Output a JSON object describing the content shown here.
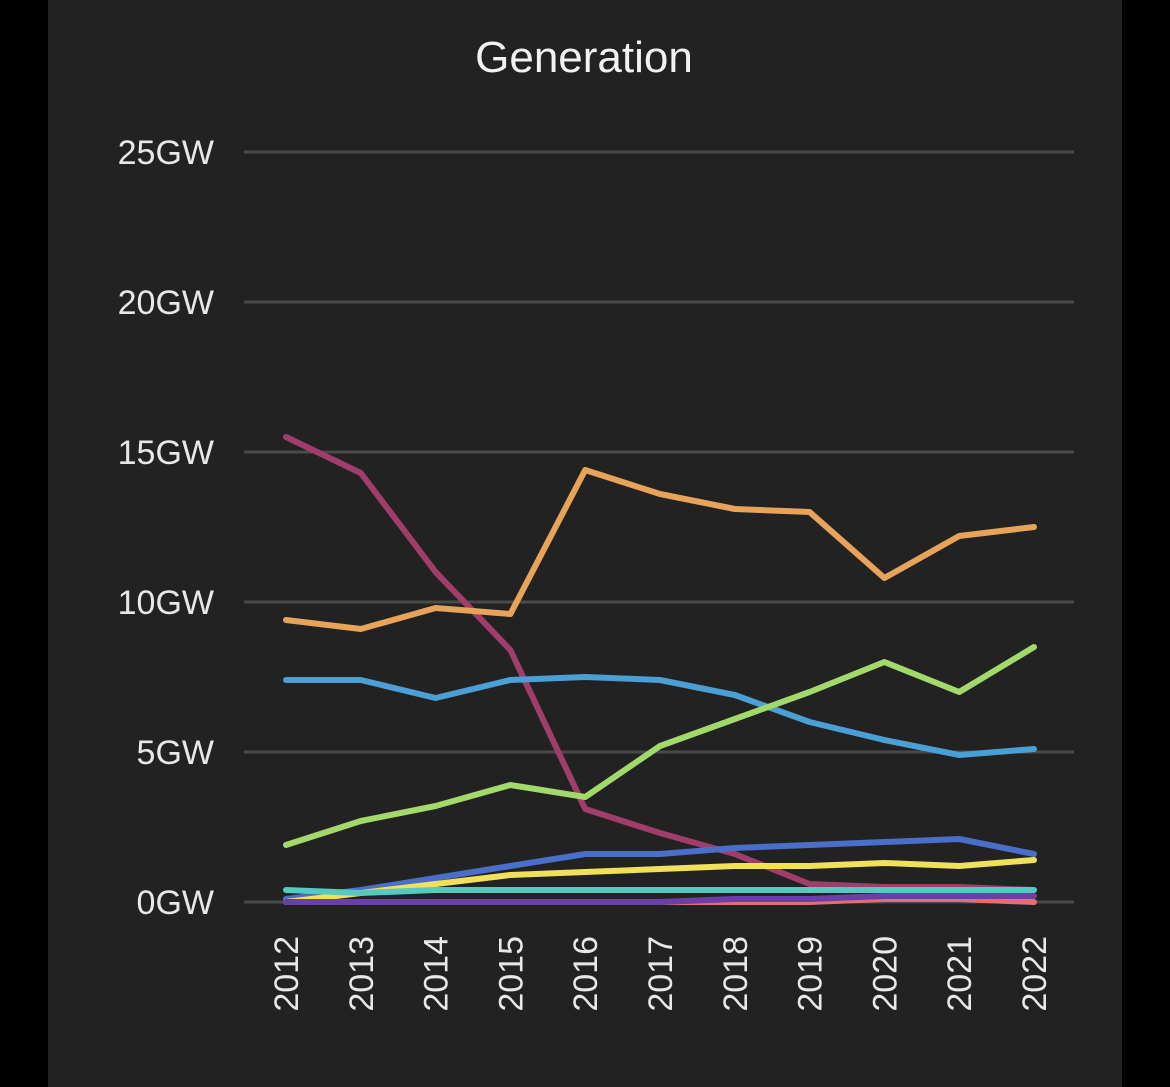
{
  "chart_data": {
    "type": "line",
    "title": "Generation",
    "xlabel": "",
    "ylabel": "",
    "x": [
      "2012",
      "2013",
      "2014",
      "2015",
      "2016",
      "2017",
      "2018",
      "2019",
      "2020",
      "2021",
      "2022"
    ],
    "y_ticks": [
      "0GW",
      "5GW",
      "10GW",
      "15GW",
      "20GW",
      "25GW"
    ],
    "ylim": [
      0,
      25
    ],
    "grid": true,
    "legend": "none",
    "series": [
      {
        "color": "#a13d6b",
        "values": [
          15.5,
          14.3,
          11.0,
          8.4,
          3.1,
          2.3,
          1.6,
          0.6,
          0.5,
          0.5,
          0.4
        ]
      },
      {
        "color": "#e8a35a",
        "values": [
          9.4,
          9.1,
          9.8,
          9.6,
          14.4,
          13.6,
          13.1,
          13.0,
          10.8,
          12.2,
          12.5
        ]
      },
      {
        "color": "#4a9fd4",
        "values": [
          7.4,
          7.4,
          6.8,
          7.4,
          7.5,
          7.4,
          6.9,
          6.0,
          5.4,
          4.9,
          5.1
        ]
      },
      {
        "color": "#a2d96a",
        "values": [
          1.9,
          2.7,
          3.2,
          3.9,
          3.5,
          5.2,
          6.1,
          7.0,
          8.0,
          7.0,
          8.5
        ]
      },
      {
        "color": "#4a6fc9",
        "values": [
          0.1,
          0.4,
          0.8,
          1.2,
          1.6,
          1.6,
          1.8,
          1.9,
          2.0,
          2.1,
          1.6
        ]
      },
      {
        "color": "#f0e05a",
        "values": [
          0.0,
          0.3,
          0.6,
          0.9,
          1.0,
          1.1,
          1.2,
          1.2,
          1.3,
          1.2,
          1.4
        ]
      },
      {
        "color": "#56c9c0",
        "values": [
          0.4,
          0.3,
          0.4,
          0.4,
          0.4,
          0.4,
          0.4,
          0.4,
          0.4,
          0.4,
          0.4
        ]
      },
      {
        "color": "#e36f6f",
        "values": [
          0.0,
          0.0,
          0.0,
          0.0,
          0.0,
          0.0,
          0.0,
          0.0,
          0.1,
          0.1,
          0.0
        ]
      },
      {
        "color": "#6a3fa8",
        "values": [
          0.0,
          0.0,
          0.0,
          0.0,
          0.0,
          0.0,
          0.1,
          0.1,
          0.2,
          0.2,
          0.2
        ]
      }
    ]
  }
}
